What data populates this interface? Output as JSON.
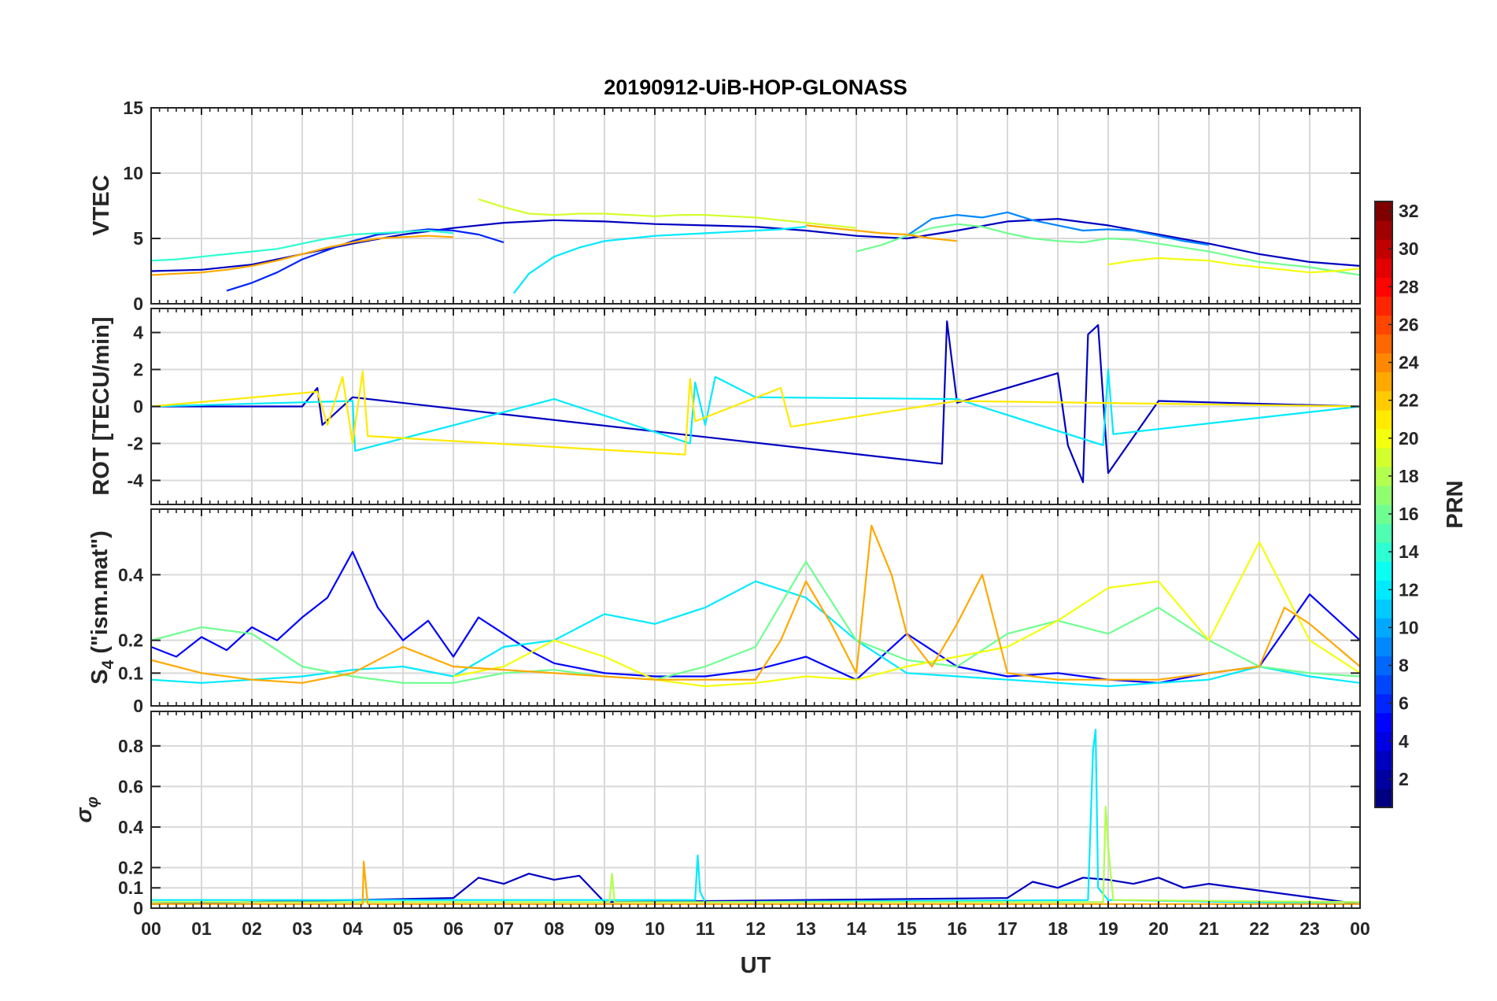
{
  "chart_data": {
    "title": "20190912-UiB-HOP-GLONASS",
    "type": "line",
    "xlabel": "UT",
    "x_ticks": [
      "00",
      "01",
      "02",
      "03",
      "04",
      "05",
      "06",
      "07",
      "08",
      "09",
      "10",
      "11",
      "12",
      "13",
      "14",
      "15",
      "16",
      "17",
      "18",
      "19",
      "20",
      "21",
      "22",
      "23",
      "00"
    ],
    "x_range_hours": [
      0,
      24
    ],
    "grid": true,
    "colormap": "jet",
    "colorbar": {
      "label": "PRN",
      "range": [
        1,
        32
      ],
      "ticks": [
        "2",
        "4",
        "6",
        "8",
        "10",
        "12",
        "14",
        "16",
        "18",
        "20",
        "22",
        "24",
        "26",
        "28",
        "30",
        "32"
      ],
      "placement": "right"
    },
    "panels": [
      {
        "name": "vtec",
        "ylabel": "VTEC",
        "ylim": [
          0,
          15
        ],
        "yticks": [
          0,
          5,
          10,
          15
        ],
        "ytick_labels": [
          "0",
          "5",
          "10",
          "15"
        ],
        "series": [
          {
            "prn": 3,
            "x": [
              0,
              1,
              2,
              3,
              4,
              5,
              6,
              7,
              8,
              9,
              10,
              11,
              12,
              13,
              14,
              15,
              16,
              17,
              18,
              19,
              20,
              21,
              22,
              23,
              24
            ],
            "y": [
              2.5,
              2.6,
              3.0,
              3.8,
              4.6,
              5.3,
              5.8,
              6.2,
              6.4,
              6.3,
              6.1,
              6.0,
              5.9,
              5.6,
              5.2,
              5.0,
              5.6,
              6.3,
              6.5,
              6.0,
              5.3,
              4.6,
              3.8,
              3.2,
              2.9
            ]
          },
          {
            "prn": 6,
            "x": [
              1.5,
              2,
              2.5,
              3,
              3.5,
              4,
              4.5,
              5,
              5.5,
              6,
              6.5,
              7
            ],
            "y": [
              1.0,
              1.6,
              2.4,
              3.4,
              4.1,
              4.8,
              5.3,
              5.5,
              5.7,
              5.6,
              5.3,
              4.7
            ]
          },
          {
            "prn": 9,
            "x": [
              15,
              15.5,
              16,
              16.5,
              17,
              17.5,
              18,
              18.5,
              19,
              19.5,
              20,
              20.5,
              21
            ],
            "y": [
              5.2,
              6.5,
              6.8,
              6.6,
              7.0,
              6.4,
              6.0,
              5.6,
              5.7,
              5.6,
              5.2,
              4.8,
              4.5
            ]
          },
          {
            "prn": 12,
            "x": [
              7.2,
              7.5,
              8,
              8.5,
              9,
              9.5,
              10,
              10.5,
              11,
              11.5,
              12,
              12.5,
              13
            ],
            "y": [
              0.8,
              2.3,
              3.6,
              4.3,
              4.8,
              5.0,
              5.2,
              5.3,
              5.4,
              5.5,
              5.6,
              5.7,
              5.9
            ]
          },
          {
            "prn": 14,
            "x": [
              0,
              0.5,
              1,
              1.5,
              2,
              2.5,
              3,
              3.5,
              4,
              4.5,
              5,
              5.5,
              6
            ],
            "y": [
              3.3,
              3.4,
              3.6,
              3.8,
              4.0,
              4.2,
              4.6,
              5.0,
              5.3,
              5.4,
              5.5,
              5.6,
              5.4
            ]
          },
          {
            "prn": 16,
            "x": [
              14,
              14.5,
              15,
              15.5,
              16,
              16.5,
              17,
              17.5,
              18,
              18.5,
              19,
              19.5,
              20,
              20.5,
              21,
              21.5,
              22,
              22.5,
              23,
              23.5,
              24
            ],
            "y": [
              4.0,
              4.5,
              5.2,
              5.8,
              6.1,
              5.9,
              5.4,
              5.0,
              4.8,
              4.7,
              5.0,
              4.9,
              4.6,
              4.3,
              4.0,
              3.6,
              3.2,
              3.0,
              2.8,
              2.5,
              2.2
            ]
          },
          {
            "prn": 19,
            "x": [
              6.5,
              7,
              7.5,
              8,
              8.5,
              9,
              9.5,
              10,
              10.5,
              11,
              11.5,
              12,
              12.5,
              13,
              13.5,
              14
            ],
            "y": [
              8.0,
              7.4,
              6.9,
              6.8,
              6.9,
              6.9,
              6.8,
              6.7,
              6.8,
              6.8,
              6.7,
              6.6,
              6.4,
              6.2,
              6.0,
              5.8
            ]
          },
          {
            "prn": 20,
            "x": [
              19,
              19.5,
              20,
              20.5,
              21,
              21.5,
              22,
              22.5,
              23,
              23.5,
              24
            ],
            "y": [
              3.0,
              3.3,
              3.5,
              3.4,
              3.3,
              3.0,
              2.8,
              2.6,
              2.4,
              2.5,
              2.7
            ]
          },
          {
            "prn": 23,
            "x": [
              0,
              0.5,
              1,
              1.5,
              2,
              2.5,
              3,
              3.5,
              4,
              4.5,
              5,
              5.5,
              6
            ],
            "y": [
              2.2,
              2.3,
              2.4,
              2.6,
              2.9,
              3.3,
              3.8,
              4.3,
              4.7,
              5.0,
              5.1,
              5.2,
              5.1
            ]
          },
          {
            "prn": 23,
            "x": [
              13,
              13.5,
              14,
              14.5,
              15,
              15.5,
              16
            ],
            "y": [
              6.0,
              5.8,
              5.6,
              5.4,
              5.3,
              5.0,
              4.8
            ]
          }
        ]
      },
      {
        "name": "rot",
        "ylabel": "ROT [TECU/min]",
        "ylim": [
          -5.3,
          5.3
        ],
        "yticks": [
          -4,
          -2,
          0,
          2,
          4
        ],
        "ytick_labels": [
          "-4",
          "-2",
          "0",
          "2",
          "4"
        ],
        "series": [
          {
            "prn": 3,
            "x": [
              0,
              3,
              3.3,
              3.4,
              4,
              15.7,
              15.8,
              16,
              18,
              18.2,
              18.5,
              18.6,
              18.8,
              19,
              20,
              24
            ],
            "y": [
              0,
              0,
              1.0,
              -1.0,
              0.5,
              -3.1,
              4.6,
              0.2,
              1.8,
              -2.1,
              -4.1,
              3.9,
              4.4,
              -3.6,
              0.3,
              0
            ]
          },
          {
            "prn": 12,
            "x": [
              0,
              4,
              4.05,
              8,
              10.7,
              10.8,
              11,
              11.2,
              12,
              16,
              18.9,
              19,
              19.1,
              24
            ],
            "y": [
              0,
              0.3,
              -2.4,
              0.4,
              -2.0,
              1.3,
              -1.0,
              1.6,
              0.5,
              0.4,
              -2.1,
              2.0,
              -1.5,
              0
            ]
          },
          {
            "prn": 21,
            "x": [
              0,
              3.3,
              3.5,
              3.8,
              4,
              4.2,
              4.3,
              10.6,
              10.7,
              10.8,
              12.5,
              12.7,
              16,
              24
            ],
            "y": [
              0,
              0.8,
              -1.0,
              1.6,
              -2.0,
              1.9,
              -1.6,
              -2.6,
              1.5,
              -0.8,
              1.0,
              -1.1,
              0.3,
              0
            ]
          }
        ]
      },
      {
        "name": "s4",
        "ylabel": "S4 (\"ism.mat\")",
        "ylabel_main": "S",
        "ylabel_sub": "4",
        "ylabel_rest": " (\"ism.mat\")",
        "ylim": [
          0,
          0.6
        ],
        "yticks": [
          0,
          0.1,
          0.2,
          0.4
        ],
        "ytick_labels": [
          "0",
          "0.1",
          "0.2",
          "0.4"
        ],
        "series": [
          {
            "prn": 5,
            "x": [
              0,
              0.5,
              1,
              1.5,
              2,
              2.5,
              3,
              3.5,
              4,
              4.5,
              5,
              5.5,
              6,
              6.5,
              7,
              7.5,
              8,
              9,
              10,
              11,
              12,
              13,
              14,
              15,
              16,
              17,
              18,
              19,
              20,
              21,
              22,
              23,
              24
            ],
            "y": [
              0.18,
              0.15,
              0.21,
              0.17,
              0.24,
              0.2,
              0.27,
              0.33,
              0.47,
              0.3,
              0.2,
              0.26,
              0.15,
              0.27,
              0.22,
              0.17,
              0.13,
              0.1,
              0.09,
              0.09,
              0.11,
              0.15,
              0.08,
              0.22,
              0.12,
              0.09,
              0.1,
              0.08,
              0.07,
              0.1,
              0.12,
              0.34,
              0.2
            ]
          },
          {
            "prn": 12,
            "x": [
              0,
              1,
              2,
              3,
              4,
              5,
              6,
              7,
              8,
              9,
              10,
              11,
              12,
              13,
              14,
              15,
              16,
              17,
              18,
              19,
              20,
              21,
              22,
              23,
              24
            ],
            "y": [
              0.08,
              0.07,
              0.08,
              0.09,
              0.11,
              0.12,
              0.09,
              0.18,
              0.2,
              0.28,
              0.25,
              0.3,
              0.38,
              0.33,
              0.2,
              0.1,
              0.09,
              0.08,
              0.07,
              0.06,
              0.07,
              0.08,
              0.12,
              0.09,
              0.07
            ]
          },
          {
            "prn": 16,
            "x": [
              0,
              1,
              2,
              3,
              4,
              5,
              6,
              7,
              8,
              9,
              10,
              11,
              12,
              13,
              14,
              15,
              16,
              17,
              18,
              19,
              20,
              21,
              22,
              23,
              24
            ],
            "y": [
              0.2,
              0.24,
              0.22,
              0.12,
              0.09,
              0.07,
              0.07,
              0.1,
              0.11,
              0.09,
              0.08,
              0.12,
              0.18,
              0.44,
              0.2,
              0.14,
              0.12,
              0.22,
              0.26,
              0.22,
              0.3,
              0.2,
              0.12,
              0.1,
              0.09
            ]
          },
          {
            "prn": 20,
            "x": [
              6,
              7,
              8,
              9,
              10,
              11,
              12,
              13,
              14,
              15,
              16,
              17,
              18,
              19,
              20,
              21,
              22,
              23,
              24
            ],
            "y": [
              0.09,
              0.12,
              0.2,
              0.15,
              0.08,
              0.06,
              0.07,
              0.09,
              0.08,
              0.12,
              0.15,
              0.18,
              0.26,
              0.36,
              0.38,
              0.2,
              0.5,
              0.2,
              0.1
            ]
          },
          {
            "prn": 23,
            "x": [
              0,
              1,
              2,
              3,
              4,
              5,
              6,
              8,
              10,
              12,
              12.5,
              13,
              13.5,
              14,
              14.3,
              14.7,
              15,
              15.5,
              16,
              16.5,
              17,
              18,
              20,
              22,
              22.5,
              23,
              24
            ],
            "y": [
              0.14,
              0.1,
              0.08,
              0.07,
              0.1,
              0.18,
              0.12,
              0.1,
              0.08,
              0.08,
              0.2,
              0.38,
              0.25,
              0.1,
              0.55,
              0.4,
              0.22,
              0.12,
              0.25,
              0.4,
              0.1,
              0.08,
              0.08,
              0.12,
              0.3,
              0.25,
              0.12
            ]
          }
        ]
      },
      {
        "name": "sigma_phi",
        "ylabel": "σφ",
        "ylabel_main": "σ",
        "ylabel_sub": "φ",
        "ylim": [
          0,
          0.97
        ],
        "yticks": [
          0,
          0.1,
          0.2,
          0.4,
          0.6,
          0.8
        ],
        "ytick_labels": [
          "0",
          "0.1",
          "0.2",
          "0.4",
          "0.6",
          "0.8"
        ],
        "series": [
          {
            "prn": 3,
            "x": [
              0,
              6,
              6.5,
              7,
              7.5,
              8,
              8.5,
              9,
              17,
              17.5,
              18,
              18.5,
              19,
              19.5,
              20,
              20.5,
              21,
              24
            ],
            "y": [
              0.02,
              0.05,
              0.15,
              0.12,
              0.17,
              0.14,
              0.16,
              0.03,
              0.05,
              0.13,
              0.1,
              0.15,
              0.14,
              0.12,
              0.15,
              0.1,
              0.12,
              0.02
            ]
          },
          {
            "prn": 12,
            "x": [
              0,
              5,
              10.8,
              10.85,
              10.9,
              11,
              18.6,
              18.7,
              18.75,
              18.8,
              19,
              24
            ],
            "y": [
              0.04,
              0.04,
              0.04,
              0.26,
              0.08,
              0.03,
              0.04,
              0.78,
              0.88,
              0.1,
              0.04,
              0.02
            ]
          },
          {
            "prn": 18,
            "x": [
              0,
              9.1,
              9.15,
              9.2,
              18.9,
              18.95,
              19,
              19.1,
              24
            ],
            "y": [
              0.03,
              0.03,
              0.17,
              0.03,
              0.03,
              0.5,
              0.3,
              0.04,
              0.03
            ]
          },
          {
            "prn": 23,
            "x": [
              0,
              4.2,
              4.22,
              4.25,
              4.3,
              24
            ],
            "y": [
              0.02,
              0.02,
              0.23,
              0.15,
              0.02,
              0.02
            ]
          }
        ]
      }
    ]
  }
}
